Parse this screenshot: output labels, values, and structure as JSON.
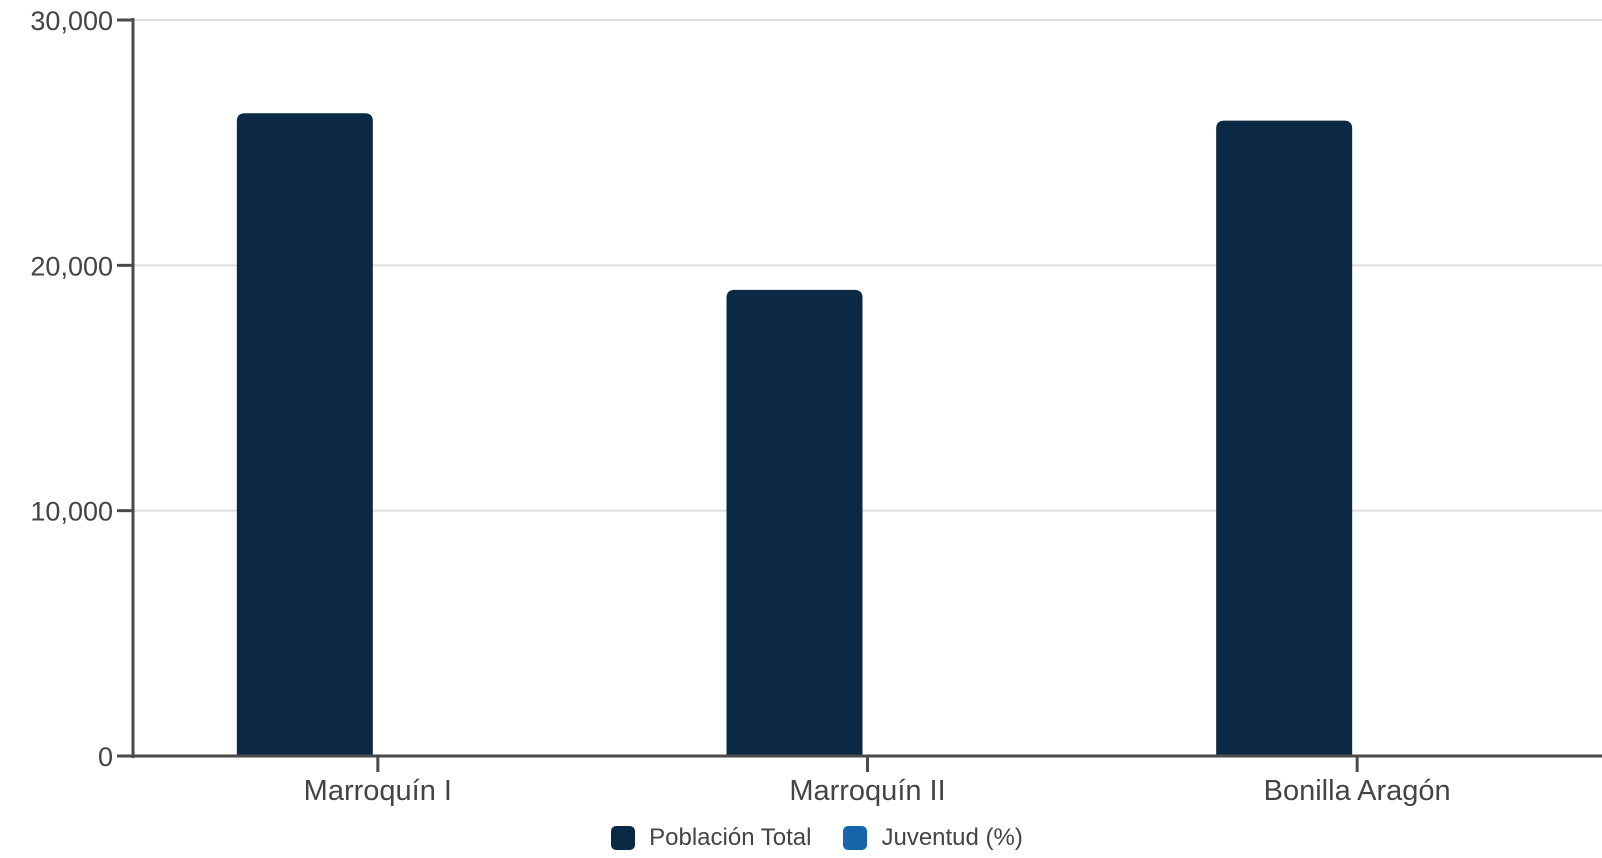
{
  "chart_data": {
    "type": "bar",
    "categories": [
      "Marroquín I",
      "Marroquín II",
      "Bonilla Aragón"
    ],
    "series": [
      {
        "name": "Población Total",
        "color": "#0b2945",
        "values": [
          26200,
          19000,
          25900
        ]
      },
      {
        "name": "Juventud (%)",
        "color": "#1565a8",
        "values": [
          null,
          null,
          null
        ]
      }
    ],
    "yaxis": {
      "ticks": [
        "0",
        "10,000",
        "20,000",
        "30,000"
      ],
      "tick_values": [
        0,
        10000,
        20000,
        30000
      ],
      "ylim": [
        0,
        30000
      ]
    },
    "grid": true,
    "legend_position": "bottom-center",
    "title": "",
    "xlabel": "",
    "ylabel": ""
  }
}
